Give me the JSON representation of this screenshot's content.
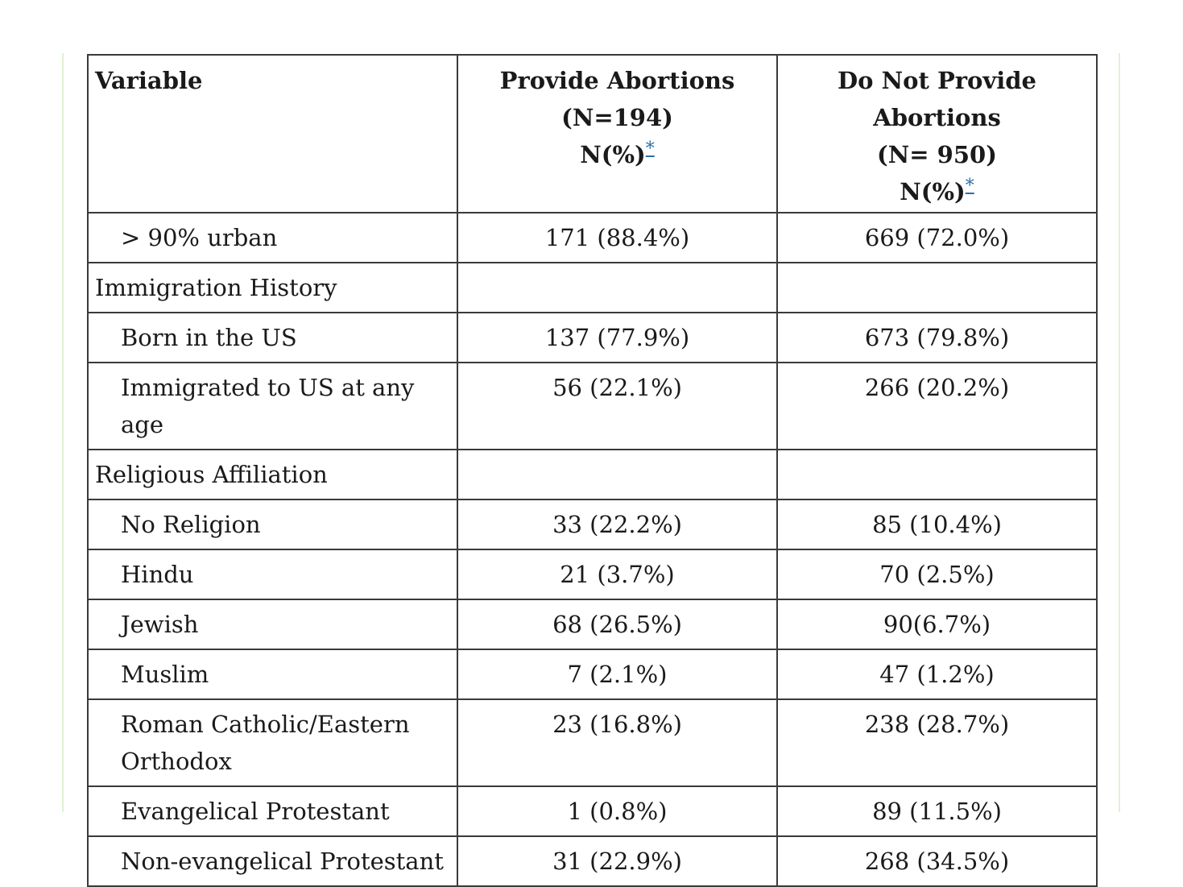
{
  "table": {
    "columns": [
      {
        "title": "Variable",
        "subtitle": "",
        "unit": "",
        "footnote": ""
      },
      {
        "title": "Provide Abortions",
        "subtitle": "(N=194)",
        "unit": "N(%)",
        "footnote": "*"
      },
      {
        "title": "Do Not Provide Abortions",
        "subtitle": "(N= 950)",
        "unit": "N(%)",
        "footnote": "*"
      }
    ],
    "rows": [
      {
        "label": "> 90% urban",
        "provide": "171 (88.4%)",
        "not_provide": "669 (72.0%)",
        "kind": "item"
      },
      {
        "label": "Immigration History",
        "provide": "",
        "not_provide": "",
        "kind": "section"
      },
      {
        "label": "Born in the US",
        "provide": "137 (77.9%)",
        "not_provide": "673 (79.8%)",
        "kind": "item"
      },
      {
        "label": "Immigrated to US at any age",
        "provide": "56 (22.1%)",
        "not_provide": "266 (20.2%)",
        "kind": "item"
      },
      {
        "label": "Religious Affiliation",
        "provide": "",
        "not_provide": "",
        "kind": "section"
      },
      {
        "label": "No Religion",
        "provide": "33 (22.2%)",
        "not_provide": "85 (10.4%)",
        "kind": "item"
      },
      {
        "label": "Hindu",
        "provide": "21 (3.7%)",
        "not_provide": "70 (2.5%)",
        "kind": "item"
      },
      {
        "label": "Jewish",
        "provide": "68 (26.5%)",
        "not_provide": "90(6.7%)",
        "kind": "item"
      },
      {
        "label": "Muslim",
        "provide": "7 (2.1%)",
        "not_provide": "47 (1.2%)",
        "kind": "item"
      },
      {
        "label": "Roman Catholic/Eastern Orthodox",
        "provide": "23 (16.8%)",
        "not_provide": "238 (28.7%)",
        "kind": "item"
      },
      {
        "label": "Evangelical Protestant",
        "provide": "1 (0.8%)",
        "not_provide": "89 (11.5%)",
        "kind": "item"
      },
      {
        "label": "Non-evangelical Protestant",
        "provide": "31 (22.9%)",
        "not_provide": "268 (34.5%)",
        "kind": "item"
      }
    ]
  },
  "colors": {
    "border": "#3a3a3a",
    "frame": "#dff0d3",
    "footnote_link": "#2c6fa8",
    "text": "#1a1a1a"
  }
}
